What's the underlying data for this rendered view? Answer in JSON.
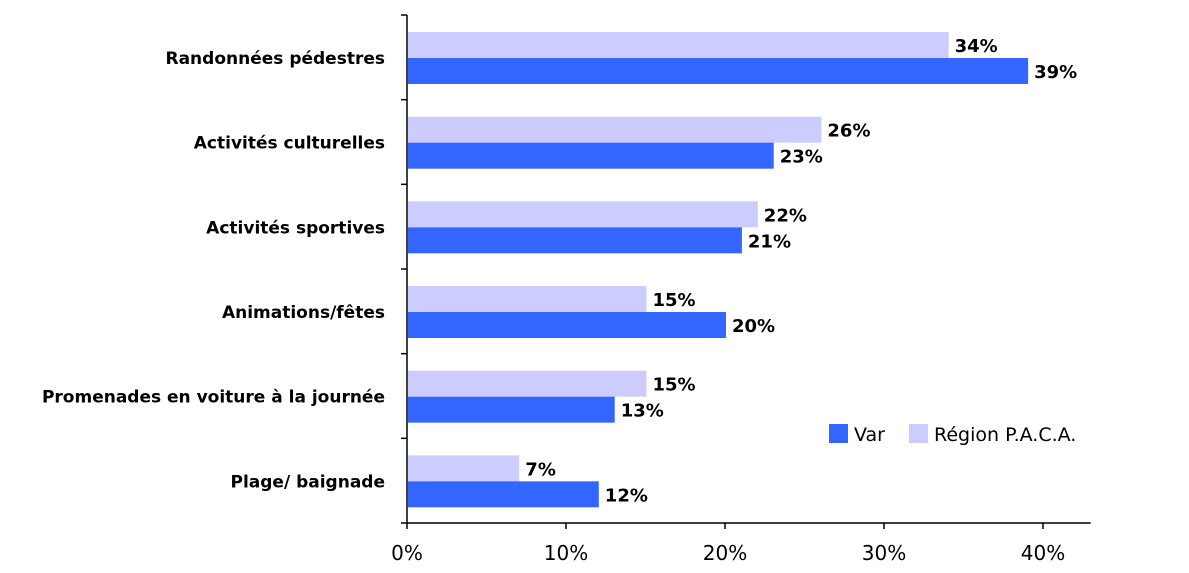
{
  "chart_data": {
    "type": "bar",
    "orientation": "horizontal",
    "categories": [
      "Randonnées pédestres",
      "Activités culturelles",
      "Activités sportives",
      "Animations/fêtes",
      "Promenades en voiture à la journée",
      "Plage/ baignade"
    ],
    "series": [
      {
        "name": "Région P.A.C.A.",
        "color": "#ccccff",
        "values": [
          34,
          26,
          22,
          15,
          15,
          7
        ],
        "labels": [
          "34%",
          "26%",
          "22%",
          "15%",
          "15%",
          "7%"
        ]
      },
      {
        "name": "Var",
        "color": "#3366ff",
        "values": [
          39,
          23,
          21,
          20,
          13,
          12
        ],
        "labels": [
          "39%",
          "23%",
          "21%",
          "20%",
          "13%",
          "12%"
        ]
      }
    ],
    "xlim": [
      0,
      43
    ],
    "xticks": [
      0,
      10,
      20,
      30,
      40
    ],
    "xtick_labels": [
      "0%",
      "10%",
      "20%",
      "30%",
      "40%"
    ],
    "legend": {
      "placement": "lower-right",
      "entries": [
        {
          "name": "Var",
          "color": "#3366ff"
        },
        {
          "name": "Région P.A.C.A.",
          "color": "#ccccff"
        }
      ]
    },
    "grid": false
  }
}
